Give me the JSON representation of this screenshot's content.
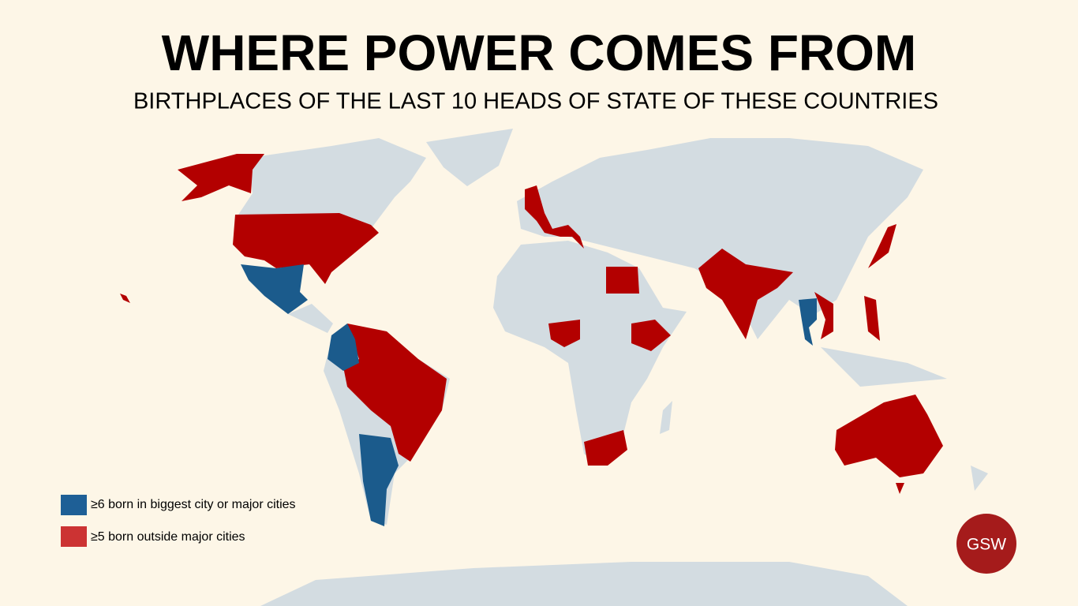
{
  "header": {
    "title": "WHERE POWER COMES FROM",
    "subtitle": "BIRTHPLACES OF THE LAST 10 HEADS OF STATE OF THESE COUNTRIES"
  },
  "legend": {
    "items": [
      {
        "label": "≥6 born in biggest city or major cities",
        "color": "#1e5f96"
      },
      {
        "label": "≥5 born outside major cities",
        "color": "#cc3333"
      }
    ]
  },
  "logo": {
    "text": "GSW"
  }
}
